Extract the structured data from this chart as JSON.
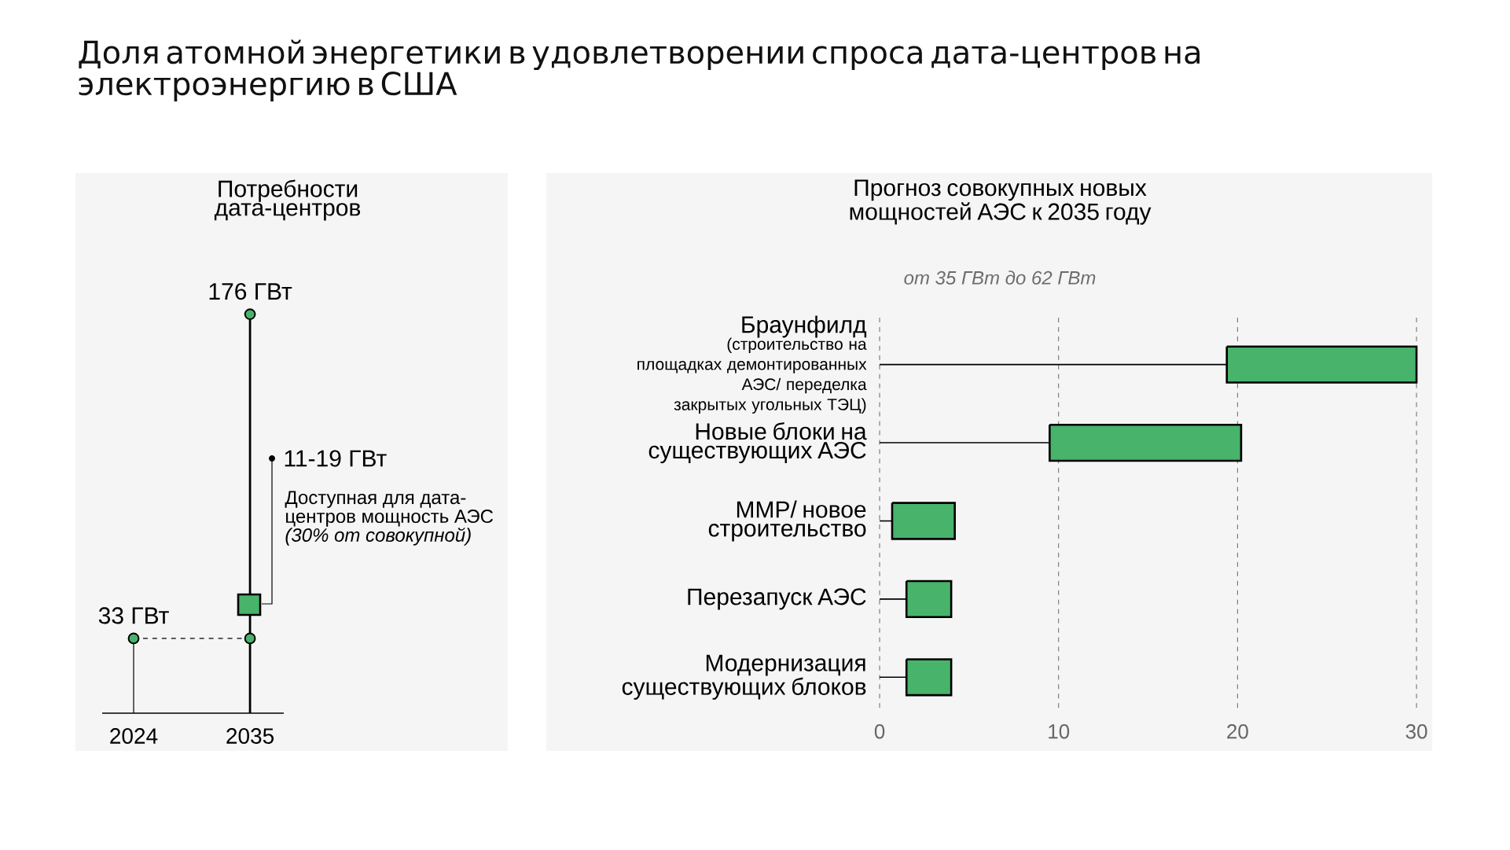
{
  "chart_data": [
    {
      "type": "other",
      "title": "Доля атомной энергетики в удовлетворении спроса дата-центров на электроэнергию в США"
    },
    {
      "type": "lollipop",
      "title": "Потребности дата-центров",
      "categories": [
        "2024",
        "2035"
      ],
      "tick_labels": "x",
      "series": [
        {
          "type": "lollipop",
          "color": "#48b36a",
          "values": [
            33,
            176
          ],
          "value_labels": [
            "33 ГВт",
            "176 ГВт"
          ]
        },
        {
          "type": "scatter",
          "color": "#48b36a",
          "values": [
            null,
            33
          ]
        }
      ],
      "ref_lines": [
        {
          "axis": "y",
          "value": 33,
          "line_style": "dashed"
        }
      ],
      "annotations": [
        "11-19 ГВт",
        "Доступная для дата-центров мощность АЭС *(30% от совокупной)*"
      ]
    },
    {
      "type": "bar",
      "orientation": "horizontal",
      "title": "Прогноз совокупных новых мощностей АЭС к 2035 году",
      "subtitle": "от 35 ГВт до 62 ГВт",
      "categories": [
        "Браунфилд",
        "Новые блоки на существующих АЭС",
        "ММР/ новое строительство",
        "Перезапуск АЭС",
        "Модернизация существующих блоков"
      ],
      "base": [
        19.4,
        9.5,
        0.7,
        1.5,
        1.5
      ],
      "values": [
        10.6,
        10.7,
        3.5,
        2.5,
        2.5
      ],
      "color": "#48b36a",
      "xlim": [
        0,
        30
      ],
      "xticks": [
        0,
        10,
        20,
        30
      ],
      "grid": "x",
      "annotations": [
        "(строительство на площадках демонтированных АЭС/ переделка закрытых угольных ТЭЦ)"
      ]
    }
  ]
}
